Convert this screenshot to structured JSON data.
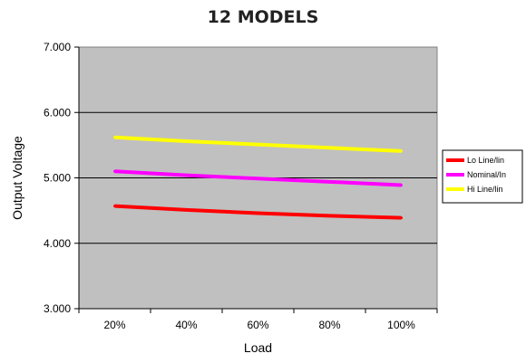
{
  "chart_data": {
    "type": "line",
    "title": "12 MODELS",
    "xlabel": "Load",
    "ylabel": "Output Voltage",
    "categories": [
      "20%",
      "40%",
      "60%",
      "80%",
      "100%"
    ],
    "yticks": [
      "3.000",
      "4.000",
      "5.000",
      "6.000",
      "7.000"
    ],
    "ylim": [
      3.0,
      7.0
    ],
    "grid": true,
    "legend_position": "right",
    "plot_background": "#c0c0c0",
    "series": [
      {
        "name": "Lo Line/lin",
        "color": "#ff0000",
        "values": [
          4.57,
          4.51,
          4.46,
          4.42,
          4.39
        ]
      },
      {
        "name": "Nominal/In",
        "color": "#ff00ff",
        "values": [
          5.1,
          5.04,
          4.99,
          4.94,
          4.89
        ]
      },
      {
        "name": "Hi Line/lin",
        "color": "#ffff00",
        "values": [
          5.62,
          5.56,
          5.51,
          5.46,
          5.41
        ]
      }
    ]
  }
}
